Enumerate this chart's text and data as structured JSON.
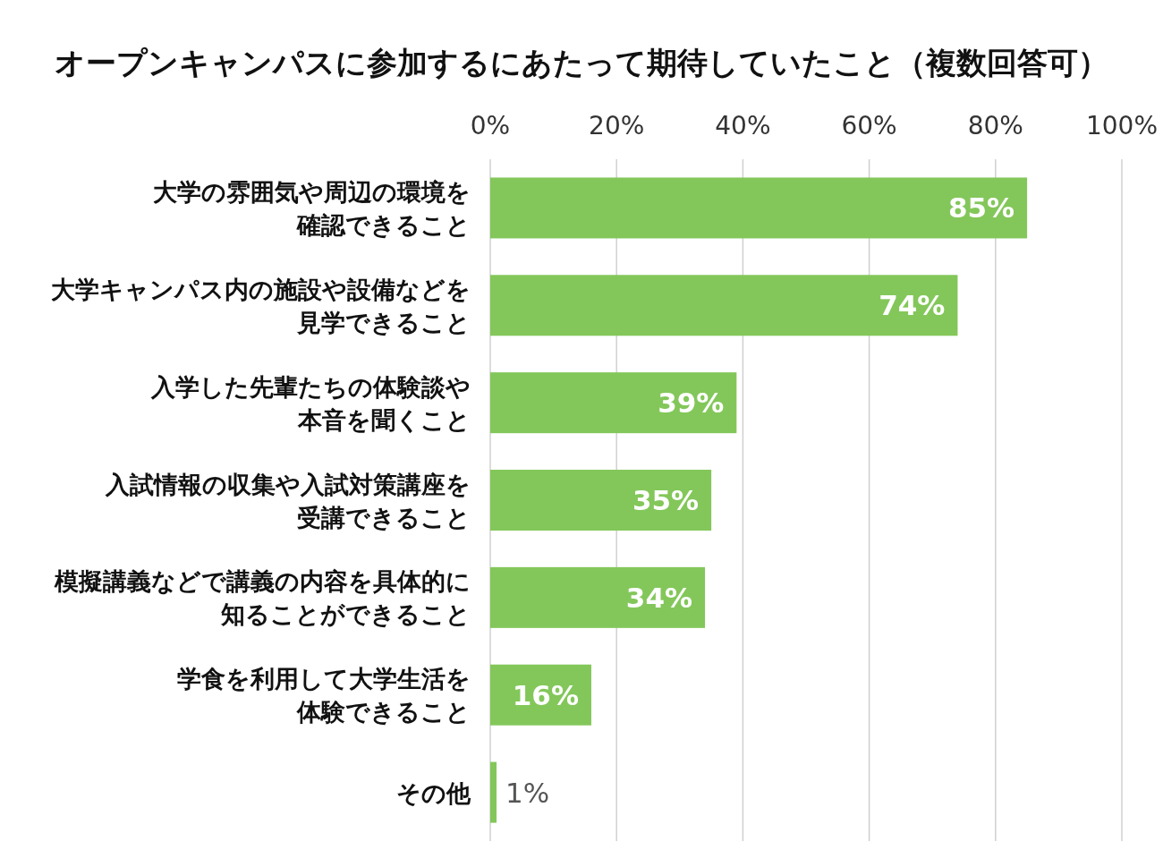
{
  "chart_data": {
    "type": "bar",
    "orientation": "horizontal",
    "title": "オープンキャンパスに参加するにあたって期待していたこと（複数回答可）",
    "categories": [
      "大学の雰囲気や周辺の環境を確認できること",
      "大学キャンパス内の施設や設備などを見学できること",
      "入学した先輩たちの体験談や本音を聞くこと",
      "入試情報の収集や入試対策講座を受講できること",
      "模擬講義などで講義の内容を具体的に知ることができること",
      "学食を利用して大学生活を体験できること",
      "その他"
    ],
    "values": [
      85,
      74,
      39,
      35,
      34,
      16,
      1
    ],
    "value_labels": [
      "85%",
      "74%",
      "39%",
      "35%",
      "34%",
      "16%",
      "1%"
    ],
    "color": "#83c75a",
    "xlim": [
      0,
      100
    ],
    "xticks": [
      {
        "value": 0,
        "label": "0%"
      },
      {
        "value": 20,
        "label": "20%"
      },
      {
        "value": 40,
        "label": "40%"
      },
      {
        "value": 60,
        "label": "60%"
      },
      {
        "value": 80,
        "label": "80%"
      },
      {
        "value": 100,
        "label": "100%"
      }
    ],
    "grid": "x"
  }
}
